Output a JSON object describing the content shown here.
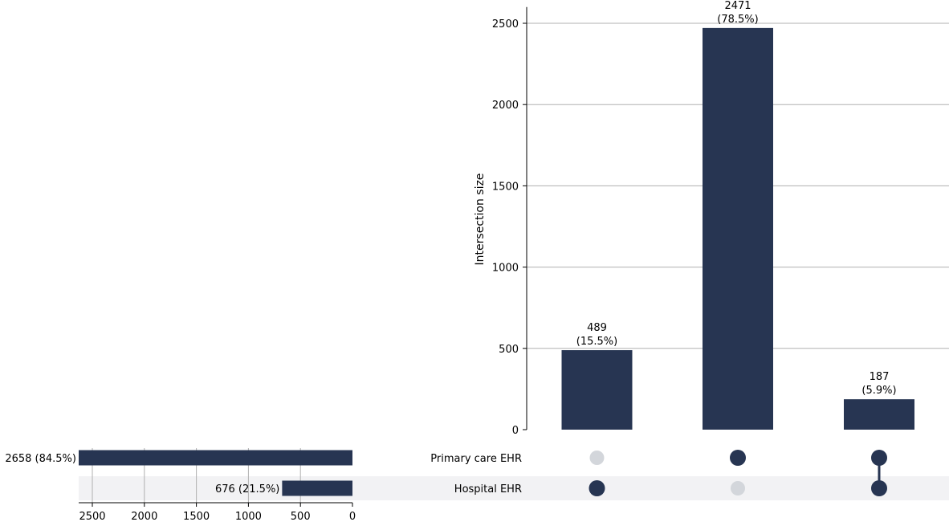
{
  "colors": {
    "bar": "#273552",
    "dot_active": "#273552",
    "dot_inactive": "#d3d6db",
    "grid": "#b0b0b0",
    "band": "#f2f2f4"
  },
  "chart_data": {
    "type": "upset",
    "ylabel": "Intersection size",
    "intersections": [
      {
        "value": 489,
        "label_value": "489",
        "label_pct": "(15.5%)",
        "members": [
          "Hospital EHR"
        ]
      },
      {
        "value": 2471,
        "label_value": "2471",
        "label_pct": "(78.5%)",
        "members": [
          "Primary care EHR"
        ]
      },
      {
        "value": 187,
        "label_value": "187",
        "label_pct": "(5.9%)",
        "members": [
          "Primary care EHR",
          "Hospital EHR"
        ]
      }
    ],
    "intersection_ylim": [
      0,
      2600
    ],
    "intersection_ticks": [
      "0",
      "500",
      "1000",
      "1500",
      "2000",
      "2500"
    ],
    "sets": [
      {
        "name": "Primary care EHR",
        "size": 2658,
        "size_label": "2658 (84.5%)"
      },
      {
        "name": "Hospital EHR",
        "size": 676,
        "size_label": "676 (21.5%)"
      }
    ],
    "set_size_xlim": [
      2658,
      0
    ],
    "set_size_ticks": [
      "2500",
      "2000",
      "1500",
      "1000",
      "500",
      "0"
    ],
    "grid": true
  }
}
